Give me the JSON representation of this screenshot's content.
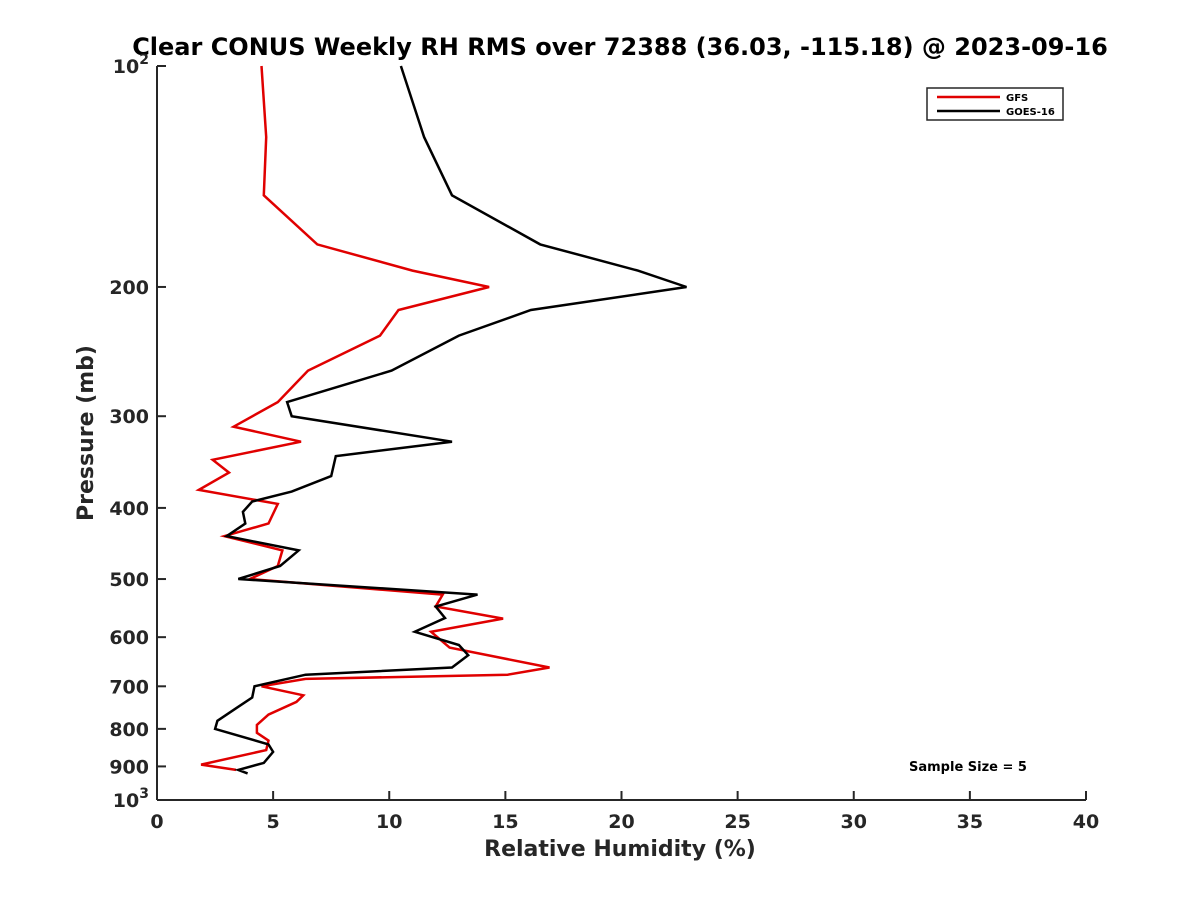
{
  "chart_data": {
    "type": "line",
    "title": "Clear CONUS Weekly RH RMS over 72388 (36.03, -115.18) @ 2023-09-16",
    "xlabel": "Relative Humidity (%)",
    "ylabel": "Pressure (mb)",
    "xlim": [
      0,
      40
    ],
    "ylim": [
      100,
      1000
    ],
    "yscale": "log",
    "y_reversed": true,
    "xticks": [
      0,
      5,
      10,
      15,
      20,
      25,
      30,
      35,
      40
    ],
    "yticks": [
      {
        "value": 100,
        "label": "10",
        "sup": "2"
      },
      {
        "value": 200,
        "label": "200",
        "sup": ""
      },
      {
        "value": 300,
        "label": "300",
        "sup": ""
      },
      {
        "value": 400,
        "label": "400",
        "sup": ""
      },
      {
        "value": 500,
        "label": "500",
        "sup": ""
      },
      {
        "value": 600,
        "label": "600",
        "sup": ""
      },
      {
        "value": 700,
        "label": "700",
        "sup": ""
      },
      {
        "value": 800,
        "label": "800",
        "sup": ""
      },
      {
        "value": 900,
        "label": "900",
        "sup": ""
      },
      {
        "value": 1000,
        "label": "10",
        "sup": "3"
      }
    ],
    "grid": false,
    "legend": "top-right",
    "annotation": "Sample Size = 5",
    "series": [
      {
        "name": "GFS",
        "color": "#e00000",
        "x": [
          4.5,
          4.7,
          4.6,
          6.9,
          11.0,
          14.3,
          10.4,
          9.6,
          6.5,
          5.2,
          3.3,
          6.2,
          2.4,
          3.1,
          1.8,
          5.2,
          4.8,
          2.9,
          5.4,
          5.2,
          4.0,
          12.3,
          12.0,
          14.9,
          11.8,
          12.6,
          16.9,
          15.1,
          6.4,
          4.5,
          6.3,
          6.0,
          4.8,
          4.3,
          4.3,
          4.8,
          4.7,
          1.9,
          3.4
        ],
        "y": [
          100,
          125,
          150,
          175,
          190,
          200,
          215,
          233,
          260,
          287,
          310,
          325,
          344,
          358,
          378,
          395,
          420,
          437,
          457,
          480,
          500,
          525,
          545,
          566,
          590,
          620,
          660,
          675,
          684,
          700,
          720,
          735,
          765,
          790,
          810,
          830,
          855,
          895,
          910
        ]
      },
      {
        "name": "GOES-16",
        "color": "#000000",
        "x": [
          10.5,
          11.5,
          12.7,
          16.5,
          20.7,
          22.8,
          16.1,
          13.0,
          10.1,
          5.6,
          5.8,
          12.7,
          7.7,
          7.5,
          5.8,
          4.1,
          3.7,
          3.8,
          3.0,
          6.1,
          5.3,
          3.5,
          13.8,
          12.0,
          12.4,
          11.1,
          13.0,
          13.4,
          12.7,
          6.4,
          4.2,
          4.1,
          3.4,
          2.6,
          2.5,
          4.8,
          5.0,
          4.6,
          3.5,
          3.9
        ],
        "y": [
          100,
          125,
          150,
          175,
          190,
          200,
          215,
          233,
          260,
          287,
          300,
          325,
          340,
          362,
          380,
          392,
          405,
          420,
          437,
          457,
          480,
          500,
          525,
          545,
          565,
          590,
          615,
          635,
          660,
          675,
          700,
          725,
          750,
          780,
          800,
          840,
          860,
          890,
          910,
          920
        ]
      }
    ]
  }
}
